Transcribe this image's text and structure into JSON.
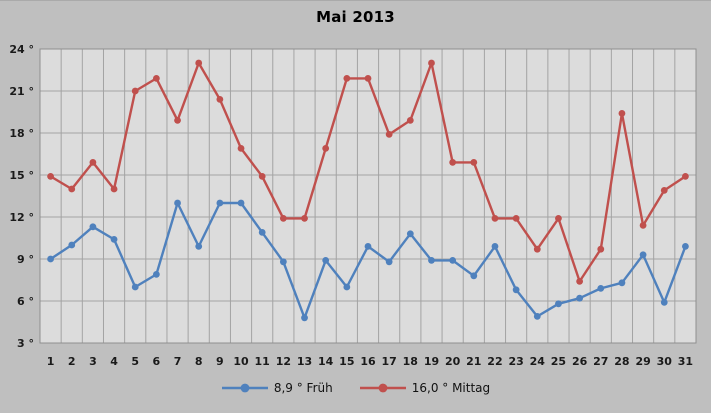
{
  "chart_data": {
    "type": "line",
    "title": "Mai 2013",
    "categories": [
      1,
      2,
      3,
      4,
      5,
      6,
      7,
      8,
      9,
      10,
      11,
      12,
      13,
      14,
      15,
      16,
      17,
      18,
      19,
      20,
      21,
      22,
      23,
      24,
      25,
      26,
      27,
      28,
      29,
      30,
      31
    ],
    "series": [
      {
        "key": "frueh",
        "name": "Früh",
        "legend_label": "8,9 ° Früh",
        "color": "#4f81bd",
        "values": [
          9.0,
          10.0,
          11.3,
          10.4,
          7.0,
          7.9,
          13.0,
          9.9,
          13.0,
          13.0,
          10.9,
          8.8,
          4.8,
          8.9,
          7.0,
          9.9,
          8.8,
          10.8,
          8.9,
          8.9,
          7.8,
          9.9,
          6.8,
          4.9,
          5.8,
          6.2,
          6.9,
          7.3,
          9.3,
          5.9,
          9.9
        ]
      },
      {
        "key": "mittag",
        "name": "Mittag",
        "legend_label": "16,0 ° Mittag",
        "color": "#c0504d",
        "values": [
          14.9,
          14.0,
          15.9,
          14.0,
          21.0,
          21.9,
          18.9,
          23.0,
          20.4,
          16.9,
          14.9,
          11.9,
          11.9,
          16.9,
          21.9,
          21.9,
          17.9,
          18.9,
          23.0,
          15.9,
          15.9,
          11.9,
          11.9,
          9.7,
          11.9,
          7.4,
          9.7,
          19.4,
          11.4,
          13.9,
          14.9
        ]
      }
    ],
    "xlabel": "",
    "ylabel": "",
    "ylim": [
      3,
      24
    ],
    "ytick_step": 3,
    "ytick_suffix": " °",
    "grid": true,
    "legend_position": "bottom-center"
  },
  "colors": {
    "page_bg": "#bfbfbf",
    "plot_bg": "#dcdcdc",
    "gridline": "#a3a3a3",
    "plot_border": "#8f8f8f",
    "text": "#1a1a1a",
    "legend_text": "#111111"
  }
}
